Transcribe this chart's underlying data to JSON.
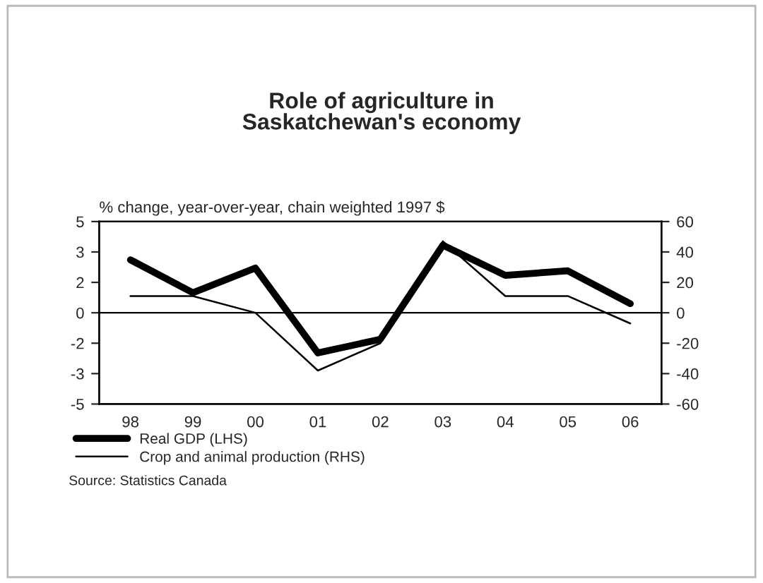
{
  "chart_data": {
    "type": "line",
    "title": "Role of agriculture in\nSaskatchewan's economy",
    "subtitle": "% change, year-over-year, chain weighted 1997 $",
    "categories": [
      "98",
      "99",
      "00",
      "01",
      "02",
      "03",
      "04",
      "05",
      "06"
    ],
    "series": [
      {
        "name": "Real GDP (LHS)",
        "color": "#000000",
        "values": [
          2.9,
          1.1,
          2.45,
          -2.2,
          -1.45,
          3.7,
          2.05,
          2.3,
          0.5
        ]
      },
      {
        "name": "Crop and animal production (RHS)",
        "color": "#000000",
        "axis": "y2",
        "values": [
          11,
          11,
          0,
          -38,
          -20,
          47,
          11,
          11,
          -7
        ]
      }
    ],
    "ylim": [
      -5,
      5
    ],
    "yticks": [
      5,
      {
        "value": 3.333,
        "label": "3"
      },
      {
        "value": 1.667,
        "label": "2"
      },
      0,
      {
        "value": -1.667,
        "label": "-2"
      },
      {
        "value": -3.333,
        "label": "-3"
      },
      -5
    ],
    "y2lim": [
      -60,
      60
    ],
    "y2ticks": [
      60,
      40,
      20,
      0,
      -20,
      -40,
      -60
    ],
    "ref_lines": [
      {
        "axis": "y",
        "value": 0,
        "color": "#000000"
      }
    ],
    "legend": "bottom",
    "grid": false,
    "annotations": [
      "Source: Statistics Canada"
    ]
  }
}
